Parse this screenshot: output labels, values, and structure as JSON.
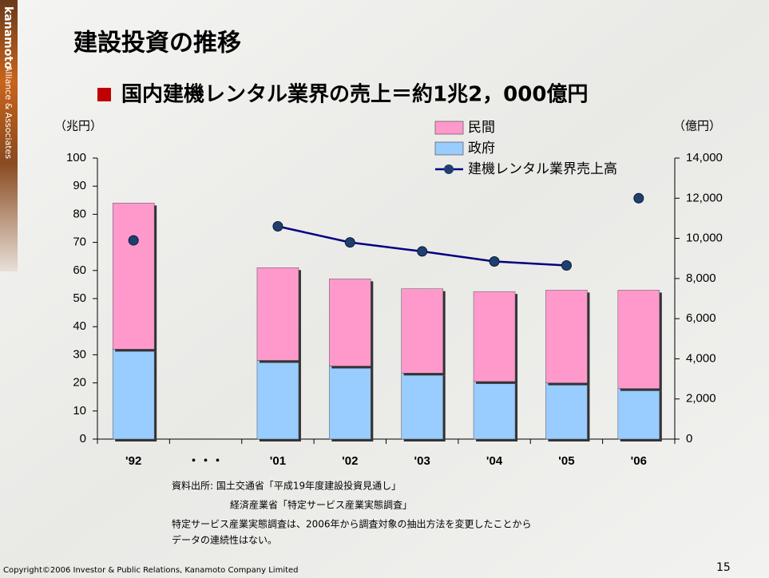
{
  "logo": {
    "brand": "kanamoto",
    "tagline": "Alliance & Associates"
  },
  "title": "建設投資の推移",
  "copyright": "Copyright©2006 Investor & Public Relations, Kanamoto Company Limited",
  "page_number": "15",
  "notes": [
    "資料出所: 国土交通省「平成19年度建設投資見通し」",
    "経済産業省「特定サービス産業実態調査」",
    "特定サービス産業実態調査は、2006年から調査対象の抽出方法を変更したことから",
    "データの連続性はない。"
  ],
  "chart_data": {
    "type": "stacked_bar_line",
    "subtitle": "国内建機レンタル業界の売上＝約1兆2，000億円",
    "y_label": "（兆円）",
    "y2_label": "（億円）",
    "categories": [
      "'92",
      "・・・",
      "'01",
      "'02",
      "'03",
      "'04",
      "'05",
      "'06"
    ],
    "series": [
      {
        "name": "民間",
        "color": "#ff99cc",
        "values": [
          52,
          null,
          33,
          31,
          30,
          32,
          33,
          35
        ]
      },
      {
        "name": "政府",
        "color": "#99ccff",
        "values": [
          32,
          null,
          28,
          26,
          23.5,
          20.5,
          20,
          18
        ]
      },
      {
        "name": "建機レンタル業界売上高",
        "color": "#000080",
        "axis": "y2",
        "values": [
          null,
          null,
          10600,
          9800,
          9350,
          8850,
          8650,
          null
        ]
      },
      {
        "color": "#000080",
        "axis": "y2",
        "line": false,
        "values": [
          9900,
          null,
          null,
          null,
          null,
          null,
          null,
          12000
        ]
      }
    ],
    "ylim": [
      0,
      100
    ],
    "yticks": [
      0,
      10,
      20,
      30,
      40,
      50,
      60,
      70,
      80,
      90,
      100
    ],
    "y2lim": [
      0,
      14000
    ],
    "y2ticks": [
      0,
      {
        "value": 2000,
        "label": "2,000"
      },
      {
        "value": 4000,
        "label": "4,000"
      },
      {
        "value": 6000,
        "label": "6,000"
      },
      {
        "value": 8000,
        "label": "8,000"
      },
      {
        "value": 10000,
        "label": "10,000"
      },
      {
        "value": 12000,
        "label": "12,000"
      },
      {
        "value": 14000,
        "label": "14,000"
      }
    ]
  }
}
